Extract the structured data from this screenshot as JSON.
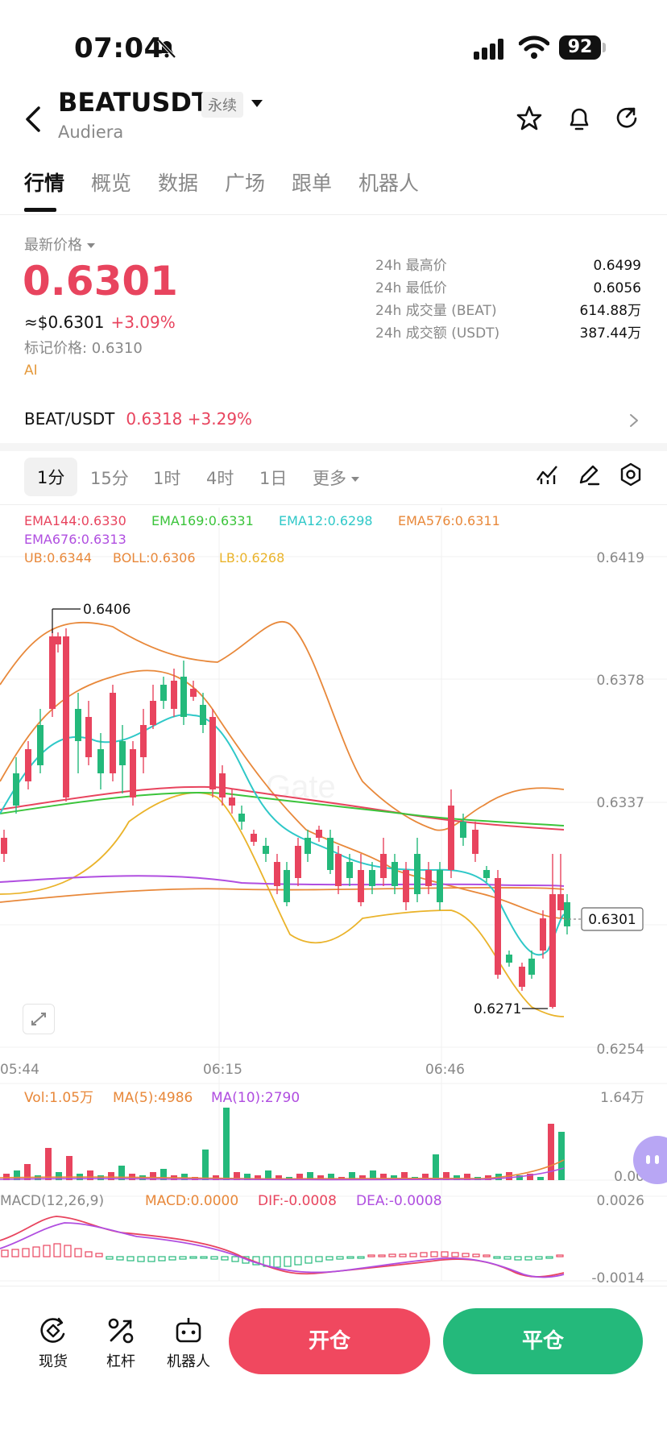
{
  "status": {
    "time": "07:04",
    "battery": "92"
  },
  "header": {
    "symbol": "BEATUSDT",
    "tag": "永续",
    "subname": "Audiera"
  },
  "tabs": [
    "行情",
    "概览",
    "数据",
    "广场",
    "跟单",
    "机器人"
  ],
  "price": {
    "latest_label": "最新价格",
    "last": "0.6301",
    "usd": "≈$0.6301",
    "change": "+3.09%",
    "mark_label": "标记价格: 0.6310",
    "ai": "AI"
  },
  "stats": [
    {
      "label": "24h 最高价",
      "value": "0.6499"
    },
    {
      "label": "24h 最低价",
      "value": "0.6056"
    },
    {
      "label": "24h 成交量 (BEAT)",
      "value": "614.88万"
    },
    {
      "label": "24h 成交额 (USDT)",
      "value": "387.44万"
    }
  ],
  "spot": {
    "pair": "BEAT/USDT",
    "price": "0.6318",
    "change": "+3.29%"
  },
  "intervals": [
    "1分",
    "15分",
    "1时",
    "4时",
    "1日",
    "更多"
  ],
  "chart_legend": {
    "ema144": "EMA144:0.6330",
    "ema169": "EMA169:0.6331",
    "ema12": "EMA12:0.6298",
    "ema576": "EMA576:0.6311",
    "ema676": "EMA676:0.6313",
    "ub": "UB:0.6344",
    "boll": "BOLL:0.6306",
    "lb": "LB:0.6268"
  },
  "chart_labels": {
    "y_ticks": [
      "0.6419",
      "0.6378",
      "0.6337",
      "0.6301",
      "0.6254"
    ],
    "x_ticks": [
      "05:44",
      "06:15",
      "06:46"
    ],
    "high_marker": "0.6406",
    "low_marker": "0.6271",
    "vol": "Vol:1.05万",
    "ma5": "MA(5):4986",
    "ma10": "MA(10):2790",
    "vol_top": "1.64万",
    "vol_bottom": "0.00",
    "macd": "MACD(12,26,9)",
    "macd_val": "MACD:0.0000",
    "dif": "DIF:-0.0008",
    "dea": "DEA:-0.0008",
    "macd_top": "0.0026",
    "macd_bottom": "-0.0014"
  },
  "colors": {
    "up": "#e8445e",
    "down": "#24b97b"
  },
  "bottom": {
    "spot": "现货",
    "lever": "杠杆",
    "bot": "机器人",
    "open": "开仓",
    "close": "平仓"
  }
}
